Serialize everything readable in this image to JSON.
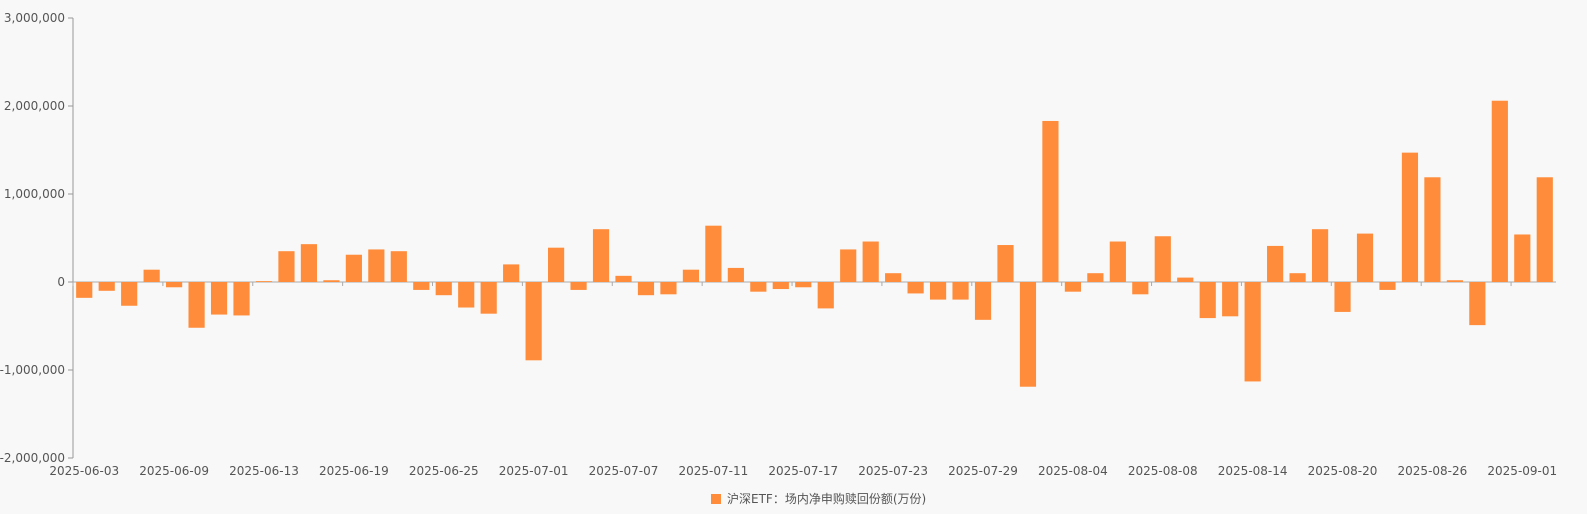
{
  "chart_data": {
    "type": "bar",
    "ylim": [
      -2000000,
      3000000
    ],
    "y_ticks": [
      {
        "value": 3000000,
        "label": "3,000,000"
      },
      {
        "value": 2000000,
        "label": "2,000,000"
      },
      {
        "value": 1000000,
        "label": "1,000,000"
      },
      {
        "value": 0,
        "label": "0"
      },
      {
        "value": -1000000,
        "label": "-1,000,000"
      },
      {
        "value": -2000000,
        "label": "-2,000,000"
      }
    ],
    "x_tick_labels": [
      {
        "index": 0,
        "label": "2025-06-03"
      },
      {
        "index": 4,
        "label": "2025-06-09"
      },
      {
        "index": 8,
        "label": "2025-06-13"
      },
      {
        "index": 12,
        "label": "2025-06-19"
      },
      {
        "index": 16,
        "label": "2025-06-25"
      },
      {
        "index": 20,
        "label": "2025-07-01"
      },
      {
        "index": 24,
        "label": "2025-07-07"
      },
      {
        "index": 28,
        "label": "2025-07-11"
      },
      {
        "index": 32,
        "label": "2025-07-17"
      },
      {
        "index": 36,
        "label": "2025-07-23"
      },
      {
        "index": 40,
        "label": "2025-07-29"
      },
      {
        "index": 44,
        "label": "2025-08-04"
      },
      {
        "index": 48,
        "label": "2025-08-08"
      },
      {
        "index": 52,
        "label": "2025-08-14"
      },
      {
        "index": 56,
        "label": "2025-08-20"
      },
      {
        "index": 60,
        "label": "2025-08-26"
      },
      {
        "index": 64,
        "label": "2025-09-01"
      }
    ],
    "series": [
      {
        "name": "沪深ETF：场内净申购赎回份额(万份)",
        "color": "#ff8c3a",
        "values": [
          -180000,
          -100000,
          -270000,
          140000,
          -60000,
          -520000,
          -370000,
          -380000,
          10000,
          350000,
          430000,
          20000,
          310000,
          370000,
          350000,
          -90000,
          -150000,
          -290000,
          -360000,
          200000,
          -890000,
          390000,
          -90000,
          600000,
          70000,
          -150000,
          -140000,
          140000,
          640000,
          160000,
          -110000,
          -80000,
          -60000,
          -300000,
          370000,
          460000,
          100000,
          -130000,
          -200000,
          -200000,
          -430000,
          420000,
          -1190000,
          1830000,
          -110000,
          100000,
          460000,
          -140000,
          520000,
          50000,
          -410000,
          -390000,
          -1130000,
          410000,
          100000,
          600000,
          -340000,
          550000,
          -90000,
          1470000,
          1190000,
          20000,
          -490000,
          2060000,
          540000,
          1190000
        ]
      }
    ]
  }
}
